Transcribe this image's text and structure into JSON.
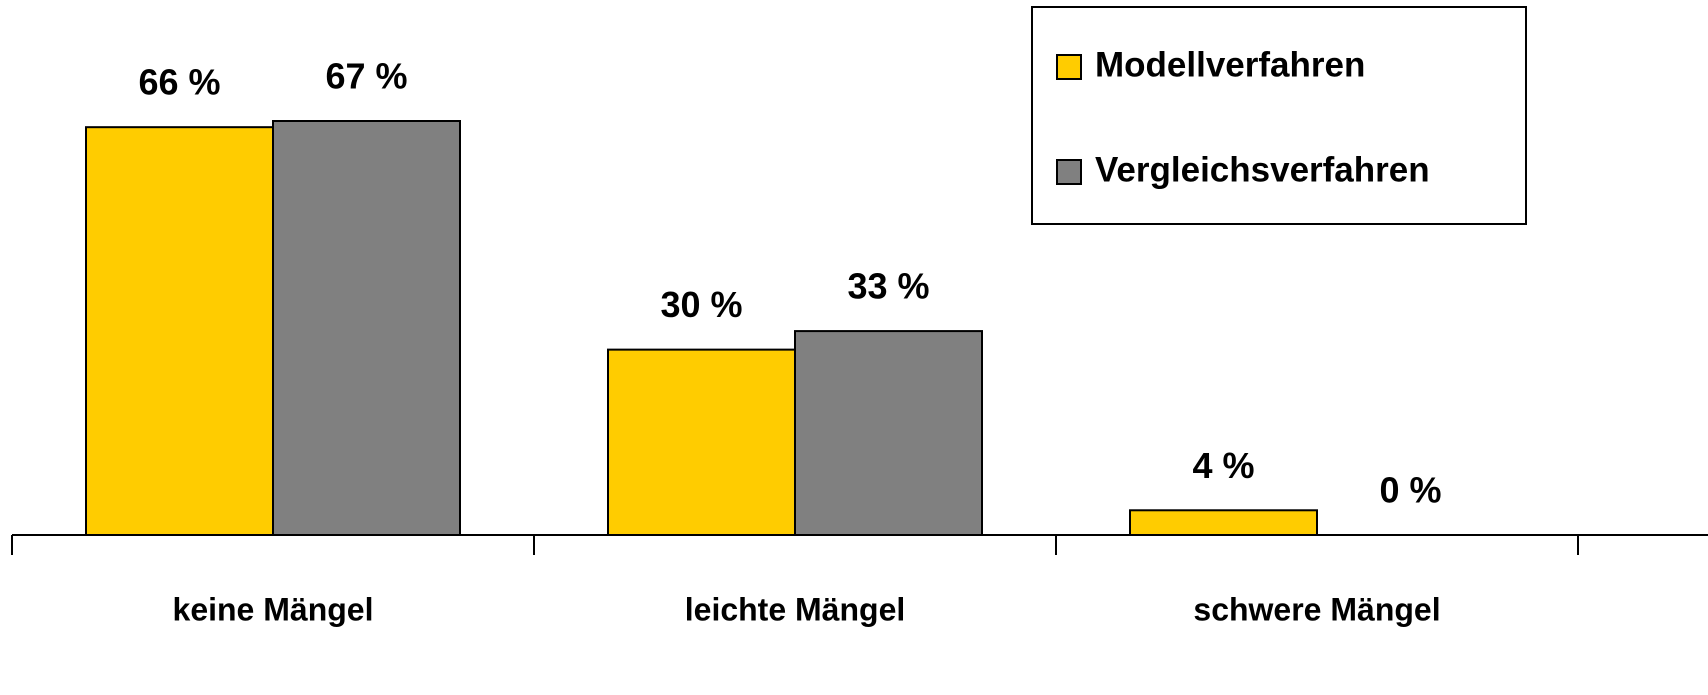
{
  "chart_data": {
    "type": "bar",
    "categories": [
      "keine Mängel",
      "leichte Mängel",
      "schwere Mängel"
    ],
    "series": [
      {
        "name": "Modellverfahren",
        "color": "#ffcc00",
        "values": [
          66,
          30,
          4
        ],
        "value_labels": [
          "66 %",
          "30 %",
          "4 %"
        ]
      },
      {
        "name": "Vergleichsverfahren",
        "color": "#808080",
        "values": [
          67,
          33,
          0
        ],
        "value_labels": [
          "67 %",
          "33 %",
          "0 %"
        ]
      }
    ],
    "legend": "top-right"
  }
}
